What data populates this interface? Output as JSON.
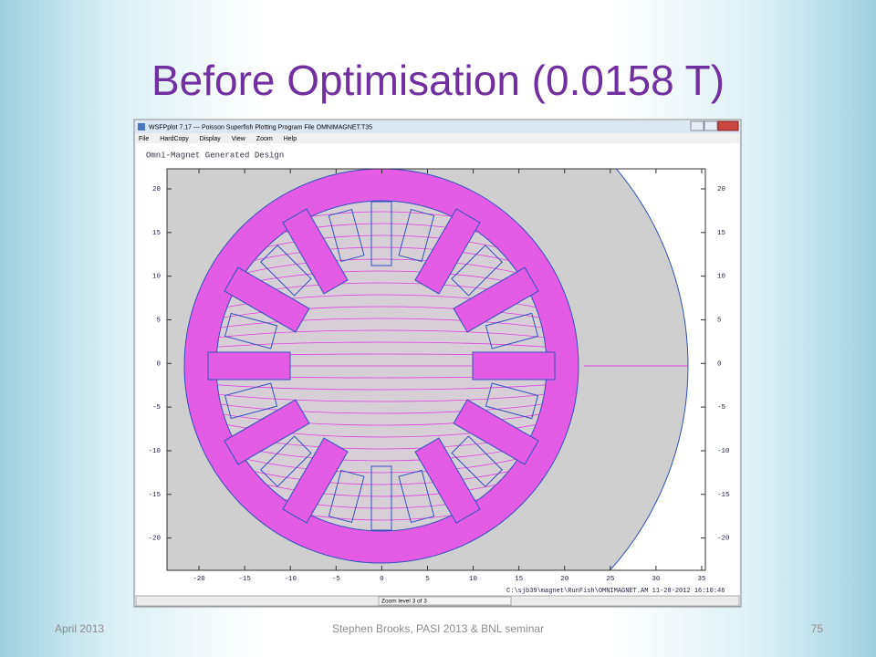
{
  "title": "Before Optimisation (0.0158 T)",
  "window": {
    "title": "WSFPplot 7.17 --- Poisson Superfish Plotting Program   File OMNIMAGNET.T35",
    "menu": [
      "File",
      "HardCopy",
      "Display",
      "View",
      "Zoom",
      "Help"
    ],
    "status": "Zoom level 3 of 3"
  },
  "plot": {
    "title": "Omni-Magnet Generated Design",
    "xlim": [
      -23.5,
      35.4
    ],
    "ylim": [
      -23.7,
      22.3
    ],
    "xticks": [
      -20,
      -15,
      -10,
      -5,
      0,
      5,
      10,
      15,
      20,
      25,
      30,
      35
    ],
    "yticks": [
      20,
      15,
      10,
      5,
      0,
      -5,
      -10,
      -15,
      -20
    ],
    "file_info": "C:\\sjb39\\magnet\\RunFish\\OMNIMAGNET.AM 11-28-2012 16:10:46"
  },
  "footer": {
    "date": "April 2013",
    "center": "Stephen Brooks, PASI 2013 & BNL seminar",
    "page": "75"
  }
}
